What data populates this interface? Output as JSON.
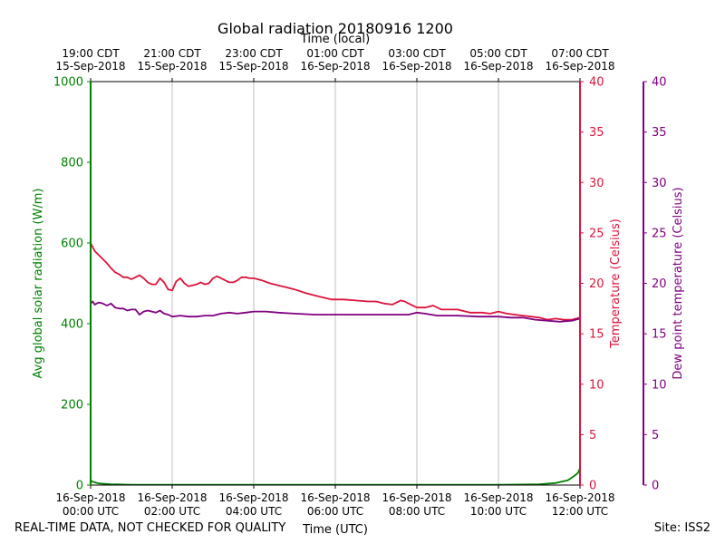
{
  "chart_data": {
    "type": "line",
    "title": "Global radiation 20180916 1200",
    "top_axis": {
      "label": "Time (local)",
      "ticks": [
        {
          "time": "19:00 CDT",
          "date": "15-Sep-2018"
        },
        {
          "time": "21:00 CDT",
          "date": "15-Sep-2018"
        },
        {
          "time": "23:00 CDT",
          "date": "15-Sep-2018"
        },
        {
          "time": "01:00 CDT",
          "date": "16-Sep-2018"
        },
        {
          "time": "03:00 CDT",
          "date": "16-Sep-2018"
        },
        {
          "time": "05:00 CDT",
          "date": "16-Sep-2018"
        },
        {
          "time": "07:00 CDT",
          "date": "16-Sep-2018"
        }
      ]
    },
    "bottom_axis": {
      "label": "Time (UTC)",
      "ticks": [
        {
          "date": "16-Sep-2018",
          "time": "00:00 UTC"
        },
        {
          "date": "16-Sep-2018",
          "time": "02:00 UTC"
        },
        {
          "date": "16-Sep-2018",
          "time": "04:00 UTC"
        },
        {
          "date": "16-Sep-2018",
          "time": "06:00 UTC"
        },
        {
          "date": "16-Sep-2018",
          "time": "08:00 UTC"
        },
        {
          "date": "16-Sep-2018",
          "time": "10:00 UTC"
        },
        {
          "date": "16-Sep-2018",
          "time": "12:00 UTC"
        }
      ]
    },
    "xlim_hours": [
      0,
      12
    ],
    "y_left": {
      "label": "Avg global solar radiation (W/m)",
      "ylim": [
        0,
        1000
      ],
      "ticks": [
        0,
        200,
        400,
        600,
        800,
        1000
      ],
      "color": "#008000"
    },
    "y_right1": {
      "label": "Temperature (Celsius)",
      "ylim": [
        0,
        40
      ],
      "ticks": [
        0,
        5,
        10,
        15,
        20,
        25,
        30,
        35,
        40
      ],
      "color": "#dc143c"
    },
    "y_right2": {
      "label": "Dew point temperature (Celsius)",
      "ylim": [
        0,
        40
      ],
      "ticks": [
        0,
        5,
        10,
        15,
        20,
        25,
        30,
        35,
        40
      ],
      "color": "#800080"
    },
    "grid": "vertical",
    "series": [
      {
        "name": "Avg global solar radiation",
        "axis": "left",
        "color": "#008000",
        "x": [
          0,
          0.05,
          0.2,
          0.5,
          1,
          2,
          4,
          6,
          8,
          10,
          11,
          11.4,
          11.7,
          11.85,
          11.95,
          12
        ],
        "y": [
          12,
          8,
          4,
          2,
          1,
          1,
          1,
          1,
          1,
          1,
          2,
          5,
          12,
          22,
          30,
          42
        ]
      },
      {
        "name": "Temperature",
        "axis": "right1",
        "color": "#dc143c",
        "x": [
          0,
          0.1,
          0.25,
          0.4,
          0.5,
          0.6,
          0.7,
          0.8,
          0.9,
          1.0,
          1.1,
          1.2,
          1.3,
          1.4,
          1.5,
          1.6,
          1.7,
          1.8,
          1.9,
          2.0,
          2.1,
          2.2,
          2.3,
          2.4,
          2.5,
          2.6,
          2.7,
          2.8,
          2.9,
          3.0,
          3.1,
          3.2,
          3.3,
          3.4,
          3.5,
          3.6,
          3.7,
          3.8,
          3.9,
          4.0,
          4.2,
          4.4,
          4.6,
          4.8,
          5.0,
          5.3,
          5.6,
          5.9,
          6.2,
          6.5,
          6.8,
          7.0,
          7.2,
          7.4,
          7.6,
          7.7,
          7.8,
          8.0,
          8.2,
          8.4,
          8.6,
          8.8,
          9.0,
          9.3,
          9.6,
          9.8,
          10.0,
          10.2,
          10.4,
          10.6,
          10.8,
          11.0,
          11.2,
          11.4,
          11.6,
          11.8,
          12.0
        ],
        "y": [
          24.0,
          23.2,
          22.6,
          22.0,
          21.5,
          21.1,
          20.9,
          20.6,
          20.6,
          20.4,
          20.6,
          20.8,
          20.5,
          20.1,
          19.9,
          19.9,
          20.5,
          20.1,
          19.4,
          19.3,
          20.2,
          20.5,
          20.0,
          19.7,
          19.8,
          19.9,
          20.1,
          19.9,
          20.0,
          20.5,
          20.7,
          20.5,
          20.3,
          20.1,
          20.1,
          20.3,
          20.6,
          20.6,
          20.5,
          20.5,
          20.3,
          20.0,
          19.8,
          19.6,
          19.4,
          19.0,
          18.7,
          18.4,
          18.4,
          18.3,
          18.2,
          18.2,
          18.0,
          17.9,
          18.3,
          18.2,
          18.0,
          17.6,
          17.6,
          17.8,
          17.4,
          17.4,
          17.4,
          17.1,
          17.1,
          17.0,
          17.2,
          17.0,
          16.9,
          16.8,
          16.7,
          16.6,
          16.4,
          16.5,
          16.4,
          16.4,
          16.6
        ]
      },
      {
        "name": "Dew point temperature",
        "axis": "right2",
        "color": "#800080",
        "x": [
          0,
          0.05,
          0.1,
          0.2,
          0.3,
          0.4,
          0.5,
          0.6,
          0.7,
          0.8,
          0.9,
          1.0,
          1.1,
          1.2,
          1.3,
          1.4,
          1.5,
          1.6,
          1.7,
          1.8,
          1.9,
          2.0,
          2.2,
          2.4,
          2.6,
          2.8,
          3.0,
          3.2,
          3.4,
          3.6,
          3.8,
          4.0,
          4.3,
          4.6,
          5.0,
          5.5,
          6.0,
          6.5,
          7.0,
          7.4,
          7.8,
          8.0,
          8.2,
          8.5,
          8.8,
          9.0,
          9.5,
          10.0,
          10.3,
          10.6,
          10.9,
          11.2,
          11.5,
          11.8,
          12.0
        ],
        "y": [
          18.0,
          18.2,
          17.9,
          18.1,
          18.0,
          17.8,
          18.0,
          17.6,
          17.5,
          17.5,
          17.3,
          17.4,
          17.4,
          16.9,
          17.2,
          17.3,
          17.2,
          17.1,
          17.3,
          17.0,
          16.9,
          16.7,
          16.8,
          16.7,
          16.7,
          16.8,
          16.8,
          17.0,
          17.1,
          17.0,
          17.1,
          17.2,
          17.2,
          17.1,
          17.0,
          16.9,
          16.9,
          16.9,
          16.9,
          16.9,
          16.9,
          17.1,
          17.0,
          16.8,
          16.8,
          16.8,
          16.7,
          16.7,
          16.6,
          16.6,
          16.4,
          16.3,
          16.2,
          16.3,
          16.5
        ]
      }
    ]
  },
  "footer": {
    "disclaimer": "REAL-TIME DATA, NOT CHECKED FOR QUALITY",
    "site": "Site: ISS2"
  }
}
